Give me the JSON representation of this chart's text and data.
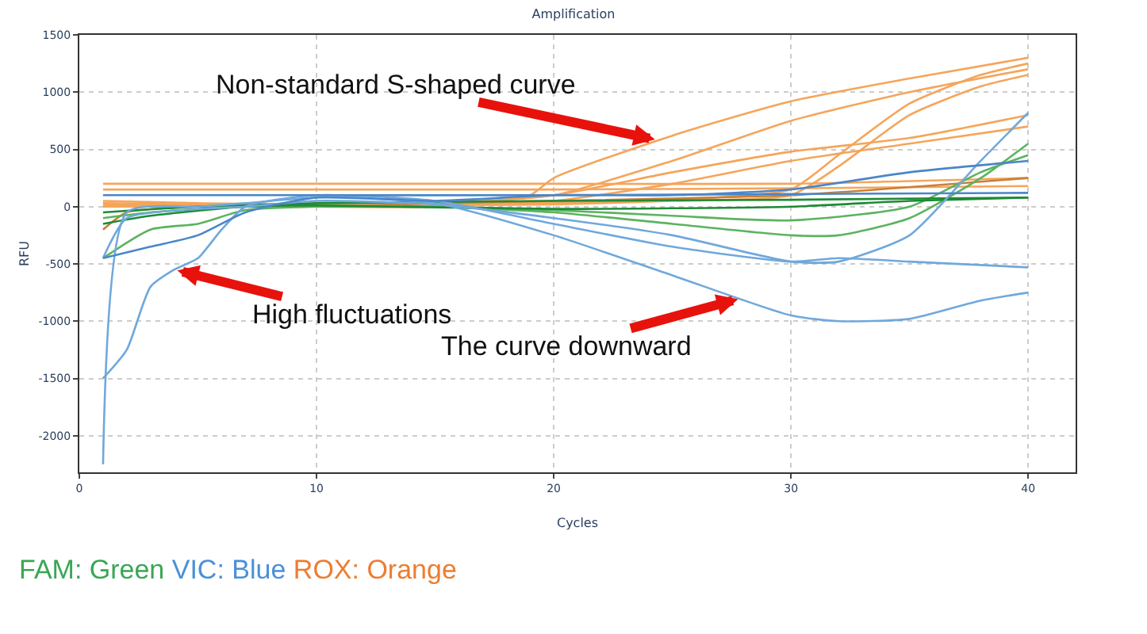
{
  "chart_data": {
    "type": "line",
    "title": "Amplification",
    "xlabel": "Cycles",
    "ylabel": "RFU",
    "xlim": [
      0,
      42
    ],
    "xticks": [
      0,
      10,
      20,
      30,
      40
    ],
    "ylim": [
      -2320,
      1500
    ],
    "yticks": [
      -2000,
      -1500,
      -1000,
      -500,
      0,
      500,
      1000,
      1500
    ],
    "grid": true,
    "marker": "none",
    "line_style": "solid",
    "series": [
      {
        "color": "#f5a55a",
        "x": [
          1,
          5,
          10,
          15,
          19,
          20,
          25,
          30,
          35,
          40
        ],
        "values": [
          0,
          0,
          0,
          0,
          100,
          250,
          620,
          920,
          1120,
          1300
        ]
      },
      {
        "color": "#f5a55a",
        "x": [
          1,
          5,
          10,
          15,
          20,
          25,
          30,
          35,
          40
        ],
        "values": [
          50,
          30,
          20,
          30,
          100,
          400,
          750,
          1000,
          1200
        ]
      },
      {
        "color": "#f5a55a",
        "x": [
          1,
          5,
          10,
          15,
          20,
          25,
          30,
          32,
          35,
          38,
          40
        ],
        "values": [
          0,
          20,
          10,
          20,
          30,
          60,
          150,
          450,
          900,
          1150,
          1250
        ]
      },
      {
        "color": "#f5a55a",
        "x": [
          1,
          5,
          10,
          15,
          20,
          25,
          30,
          32,
          35,
          38,
          40
        ],
        "values": [
          20,
          10,
          0,
          10,
          20,
          50,
          100,
          350,
          800,
          1050,
          1150
        ]
      },
      {
        "color": "#f5a55a",
        "x": [
          1,
          5,
          10,
          15,
          20,
          25,
          30,
          35,
          40
        ],
        "values": [
          30,
          20,
          10,
          20,
          100,
          300,
          480,
          600,
          800
        ]
      },
      {
        "color": "#f5a55a",
        "x": [
          1,
          5,
          10,
          15,
          20,
          25,
          30,
          35,
          40
        ],
        "values": [
          10,
          0,
          0,
          0,
          50,
          200,
          400,
          550,
          700
        ]
      },
      {
        "color": "#f5a55a",
        "x": [
          1,
          10,
          20,
          30,
          40
        ],
        "values": [
          200,
          200,
          200,
          200,
          250
        ]
      },
      {
        "color": "#f5a55a",
        "x": [
          1,
          10,
          20,
          30,
          40
        ],
        "values": [
          150,
          150,
          150,
          160,
          180
        ]
      },
      {
        "color": "#c7803a",
        "x": [
          1,
          2,
          5,
          10,
          15,
          20,
          30,
          40
        ],
        "values": [
          -200,
          -50,
          0,
          0,
          30,
          50,
          100,
          250
        ]
      },
      {
        "color": "#5bb35f",
        "x": [
          1,
          3,
          7,
          10,
          15,
          20,
          25,
          30,
          32,
          35,
          38,
          40
        ],
        "values": [
          -100,
          -50,
          0,
          10,
          0,
          -50,
          -150,
          -250,
          -250,
          -100,
          250,
          550
        ]
      },
      {
        "color": "#5bb35f",
        "x": [
          1,
          3,
          5,
          7,
          10,
          15,
          20,
          25,
          30,
          35,
          38,
          40
        ],
        "values": [
          -450,
          -200,
          -150,
          -30,
          0,
          0,
          -30,
          -80,
          -120,
          0,
          300,
          450
        ]
      },
      {
        "color": "#1e8a35",
        "x": [
          1,
          5,
          10,
          20,
          30,
          40
        ],
        "values": [
          -50,
          0,
          30,
          50,
          60,
          80
        ]
      },
      {
        "color": "#1e8a35",
        "x": [
          1,
          3,
          7,
          10,
          20,
          30,
          35,
          40
        ],
        "values": [
          -150,
          -80,
          0,
          10,
          -20,
          0,
          50,
          80
        ]
      },
      {
        "color": "#6fa8dc",
        "x": [
          1,
          2,
          5,
          7,
          10,
          15,
          20,
          25,
          30,
          32,
          35,
          38,
          40
        ],
        "values": [
          -2250,
          -50,
          0,
          30,
          80,
          30,
          -250,
          -600,
          -950,
          -1000,
          -980,
          -820,
          -750
        ]
      },
      {
        "color": "#6fa8dc",
        "x": [
          1,
          2,
          3,
          4,
          5,
          6,
          7,
          10,
          15,
          20,
          25,
          30,
          32,
          35,
          40
        ],
        "values": [
          -1500,
          -1250,
          -700,
          -550,
          -450,
          -200,
          0,
          100,
          50,
          -150,
          -350,
          -480,
          -450,
          -480,
          -530
        ]
      },
      {
        "color": "#6fa8dc",
        "x": [
          1,
          2,
          5,
          7,
          10,
          15,
          20,
          25,
          30,
          32,
          35,
          38,
          40
        ],
        "values": [
          -450,
          -100,
          -20,
          0,
          50,
          20,
          -100,
          -250,
          -480,
          -480,
          -250,
          400,
          820
        ]
      },
      {
        "color": "#4a86c8",
        "x": [
          1,
          2,
          3,
          5,
          7,
          10,
          15,
          20,
          25,
          30,
          35,
          40
        ],
        "values": [
          -450,
          -400,
          -350,
          -250,
          -50,
          80,
          50,
          100,
          100,
          150,
          300,
          400
        ]
      },
      {
        "color": "#4a86c8",
        "x": [
          1,
          10,
          20,
          30,
          40
        ],
        "values": [
          100,
          100,
          100,
          110,
          120
        ]
      }
    ],
    "annotations": [
      {
        "text": "Non-standard S-shaped curve",
        "x": 24.4,
        "y": 580
      },
      {
        "text": "High fluctuations",
        "x": 4,
        "y": -550
      },
      {
        "text": "The curve downward",
        "x": 27.9,
        "y": -800
      },
      "FAM: Green VIC: Blue ROX: Orange"
    ]
  }
}
